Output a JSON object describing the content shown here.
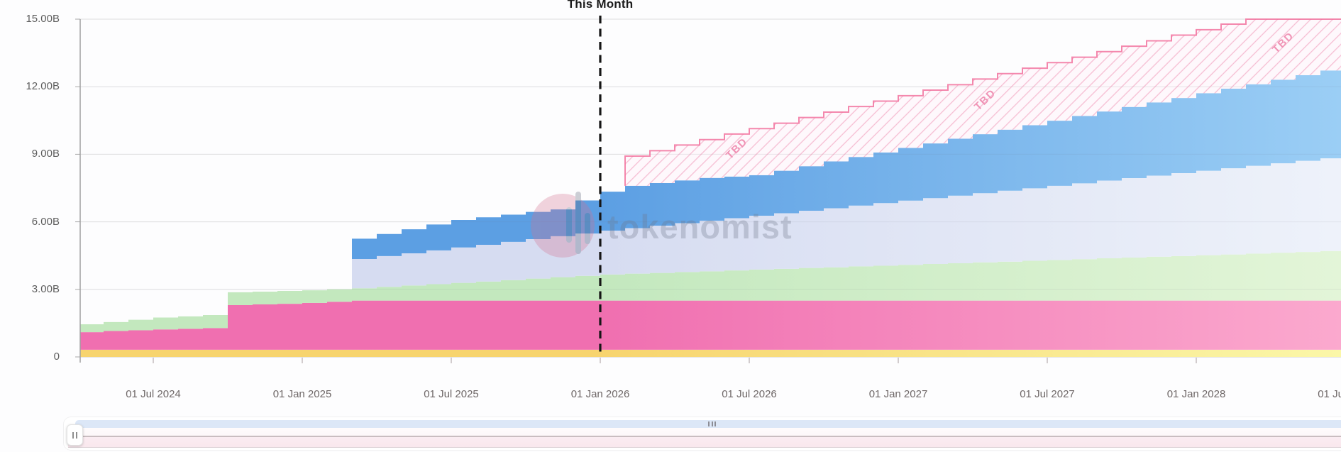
{
  "annotation": {
    "this_month": "This Month"
  },
  "watermark": {
    "text": "tokenomist"
  },
  "y_axis": {
    "tick_values": [
      15,
      12,
      9,
      6,
      3,
      0
    ],
    "tick_labels": [
      "15.00B",
      "12.00B",
      "9.00B",
      "6.00B",
      "3.00B",
      "0"
    ]
  },
  "x_axis": {
    "tick_labels": [
      "01 Jul 2024",
      "01 Jan 2025",
      "01 Jul 2025",
      "01 Jan 2026",
      "01 Jul 2026",
      "01 Jan 2027",
      "01 Jul 2027",
      "01 Jan 2028",
      "01 Jul 2028"
    ],
    "tick_month_indices": [
      3,
      9,
      15,
      21,
      27,
      33,
      39,
      45,
      51
    ]
  },
  "chart_data": {
    "type": "area",
    "stacking": true,
    "interpolation": "step-after-monthly",
    "value_unit": "billions of tokens",
    "ylim": [
      0,
      15
    ],
    "grid": true,
    "legend_position": "none",
    "this_month_index": 21,
    "fade_start_index": 21,
    "tbd_label": "TBD",
    "months": [
      "2024-04",
      "2024-05",
      "2024-06",
      "2024-07",
      "2024-08",
      "2024-09",
      "2024-10",
      "2024-11",
      "2024-12",
      "2025-01",
      "2025-02",
      "2025-03",
      "2025-04",
      "2025-05",
      "2025-06",
      "2025-07",
      "2025-08",
      "2025-09",
      "2025-10",
      "2025-11",
      "2025-12",
      "2026-01",
      "2026-02",
      "2026-03",
      "2026-04",
      "2026-05",
      "2026-06",
      "2026-07",
      "2026-08",
      "2026-09",
      "2026-10",
      "2026-11",
      "2026-12",
      "2027-01",
      "2027-02",
      "2027-03",
      "2027-04",
      "2027-05",
      "2027-06",
      "2027-07",
      "2027-08",
      "2027-09",
      "2027-10",
      "2027-11",
      "2027-12",
      "2028-01",
      "2028-02",
      "2028-03",
      "2028-04",
      "2028-05",
      "2028-06",
      "2028-07"
    ],
    "series": [
      {
        "name": "yellow",
        "color": "#F7D46E",
        "color_faded": "#FBF7A8",
        "values": [
          0.32,
          0.32,
          0.32,
          0.32,
          0.32,
          0.32,
          0.32,
          0.32,
          0.32,
          0.32,
          0.32,
          0.32,
          0.32,
          0.32,
          0.32,
          0.32,
          0.32,
          0.32,
          0.32,
          0.32,
          0.32,
          0.32,
          0.32,
          0.32,
          0.32,
          0.32,
          0.32,
          0.32,
          0.32,
          0.32,
          0.32,
          0.32,
          0.32,
          0.32,
          0.32,
          0.32,
          0.32,
          0.32,
          0.32,
          0.32,
          0.32,
          0.32,
          0.32,
          0.32,
          0.32,
          0.32,
          0.32,
          0.32,
          0.32,
          0.32,
          0.32,
          0.32
        ]
      },
      {
        "name": "pink",
        "color": "#F06FB0",
        "color_faded": "#FBA9CE",
        "values": [
          0.78,
          0.83,
          0.86,
          0.9,
          0.93,
          0.96,
          1.98,
          2.01,
          2.04,
          2.08,
          2.13,
          2.18,
          2.18,
          2.18,
          2.18,
          2.18,
          2.18,
          2.18,
          2.18,
          2.18,
          2.18,
          2.18,
          2.18,
          2.18,
          2.18,
          2.18,
          2.18,
          2.18,
          2.18,
          2.18,
          2.18,
          2.18,
          2.18,
          2.18,
          2.18,
          2.18,
          2.18,
          2.18,
          2.18,
          2.18,
          2.18,
          2.18,
          2.18,
          2.18,
          2.18,
          2.18,
          2.18,
          2.18,
          2.18,
          2.18,
          2.18,
          2.18
        ]
      },
      {
        "name": "green",
        "color": "#C3E8BE",
        "color_faded": "#E3F5D8",
        "values": [
          0.35,
          0.4,
          0.47,
          0.53,
          0.55,
          0.58,
          0.57,
          0.57,
          0.57,
          0.56,
          0.55,
          0.55,
          0.61,
          0.67,
          0.73,
          0.79,
          0.85,
          0.91,
          0.98,
          1.04,
          1.1,
          1.16,
          1.2,
          1.23,
          1.27,
          1.3,
          1.34,
          1.38,
          1.41,
          1.45,
          1.48,
          1.52,
          1.55,
          1.59,
          1.63,
          1.66,
          1.7,
          1.73,
          1.77,
          1.8,
          1.84,
          1.88,
          1.91,
          1.95,
          1.98,
          2.02,
          2.05,
          2.09,
          2.13,
          2.16,
          2.2,
          2.23
        ]
      },
      {
        "name": "lavender",
        "color": "#D6DCF1",
        "color_faded": "#EEF2FA",
        "values": [
          0,
          0,
          0,
          0,
          0,
          0,
          0,
          0,
          0,
          0,
          0,
          1.3,
          1.37,
          1.43,
          1.5,
          1.57,
          1.63,
          1.7,
          1.75,
          1.82,
          1.88,
          1.95,
          2.02,
          2.1,
          2.17,
          2.25,
          2.32,
          2.39,
          2.47,
          2.54,
          2.62,
          2.7,
          2.78,
          2.85,
          2.92,
          3.0,
          3.07,
          3.15,
          3.22,
          3.3,
          3.37,
          3.45,
          3.53,
          3.6,
          3.68,
          3.75,
          3.83,
          3.9,
          3.97,
          4.05,
          4.12,
          4.2
        ]
      },
      {
        "name": "blue",
        "color": "#5C9FE3",
        "color_faded": "#9BCEF5",
        "values": [
          0,
          0,
          0,
          0,
          0,
          0,
          0,
          0,
          0,
          0,
          0,
          0.9,
          0.98,
          1.07,
          1.15,
          1.22,
          1.22,
          1.21,
          1.21,
          1.19,
          1.47,
          1.73,
          1.88,
          1.89,
          1.9,
          1.9,
          1.85,
          1.8,
          1.89,
          1.98,
          2.08,
          2.16,
          2.25,
          2.34,
          2.43,
          2.53,
          2.62,
          2.71,
          2.8,
          2.89,
          2.99,
          3.07,
          3.16,
          3.25,
          3.34,
          3.44,
          3.53,
          3.62,
          3.71,
          3.8,
          3.9,
          3.99
        ]
      },
      {
        "name": "tbd_projected",
        "color": "#F2739F",
        "color_faded": "#F6A8C4",
        "hatch": true,
        "values": [
          0,
          0,
          0,
          0,
          0,
          0,
          0,
          0,
          0,
          0,
          0,
          0,
          0,
          0,
          0,
          0,
          0,
          0,
          0,
          0,
          0,
          0,
          1.32,
          1.44,
          1.57,
          1.7,
          1.89,
          2.07,
          2.11,
          2.16,
          2.19,
          2.24,
          2.28,
          2.32,
          2.37,
          2.4,
          2.45,
          2.49,
          2.53,
          2.58,
          2.61,
          2.66,
          2.7,
          2.74,
          2.79,
          2.82,
          2.87,
          2.89,
          2.69,
          2.49,
          2.28,
          2.08
        ]
      }
    ]
  },
  "navigator": {
    "scrollbar_color": "#DCE7F7",
    "panel_color": "#FBF2F4"
  }
}
